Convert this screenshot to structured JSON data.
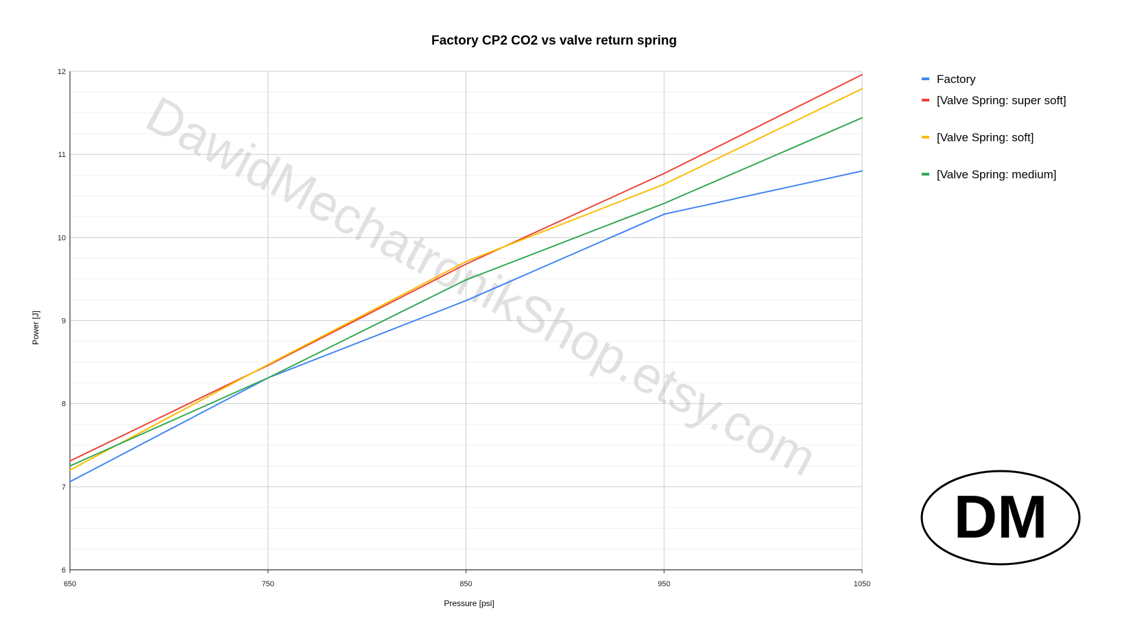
{
  "chart_data": {
    "type": "line",
    "title": "Factory CP2 CO2 vs valve return spring",
    "xlabel": "Pressure [psi]",
    "ylabel": "Power [J]",
    "x": [
      650,
      750,
      850,
      950,
      1050
    ],
    "xlim": [
      650,
      1050
    ],
    "ylim": [
      6,
      12
    ],
    "xticks": [
      650,
      750,
      850,
      950,
      1050
    ],
    "yticks": [
      6,
      7,
      8,
      9,
      10,
      11,
      12
    ],
    "grid": true,
    "legend_position": "right",
    "series": [
      {
        "name": "Factory",
        "color": "#4285f4",
        "values": [
          7.06,
          8.31,
          9.24,
          10.28,
          10.8
        ]
      },
      {
        "name": "[Valve Spring: super soft]",
        "color": "#ea4335",
        "values": [
          7.31,
          8.46,
          9.68,
          10.77,
          11.96
        ]
      },
      {
        "name": "[Valve Spring: soft]",
        "color": "#fbbc04",
        "values": [
          7.2,
          8.47,
          9.71,
          10.64,
          11.79
        ]
      },
      {
        "name": "[Valve Spring: medium]",
        "color": "#34a853",
        "values": [
          7.25,
          8.31,
          9.49,
          10.41,
          11.44
        ]
      }
    ]
  },
  "watermark": "DawidMechatronikShop.etsy.com",
  "logo": {
    "text": "DM"
  }
}
